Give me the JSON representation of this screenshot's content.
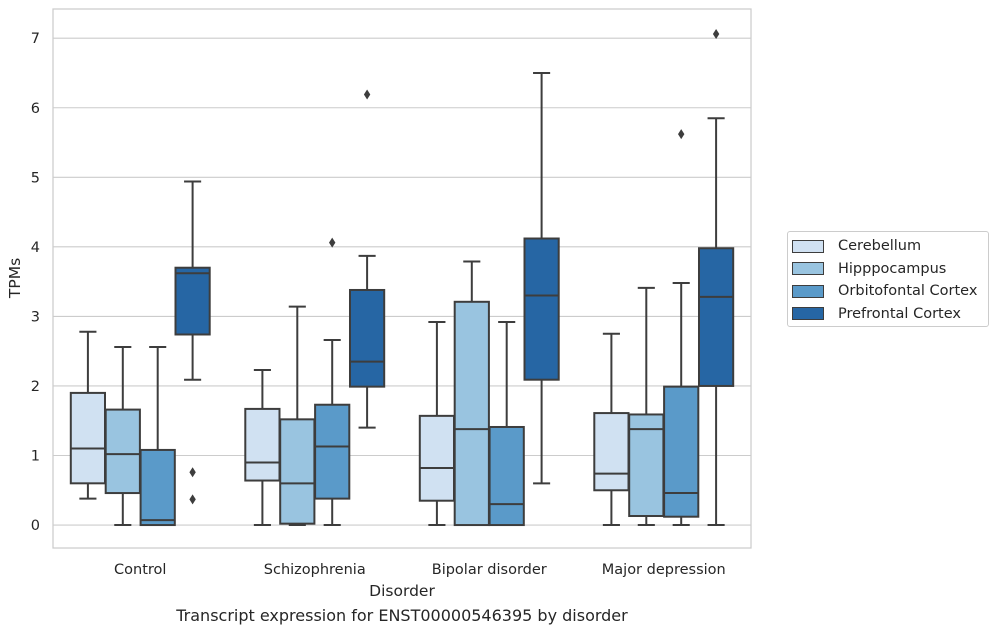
{
  "chart_data": {
    "type": "boxplot",
    "xlabel": "Disorder",
    "ylabel": "TPMs",
    "ylim": [
      -0.33,
      7.42
    ],
    "yticks": [
      0,
      1,
      2,
      3,
      4,
      5,
      6,
      7
    ],
    "grid": "horizontal",
    "legend_position": "right",
    "categories": [
      "Control",
      "Schizophrenia",
      "Bipolar disorder",
      "Major depression"
    ],
    "series": [
      {
        "name": "Cerebellum",
        "color": "#d0e1f2",
        "boxes": [
          {
            "whislo": 0.38,
            "q1": 0.6,
            "med": 1.1,
            "q3": 1.9,
            "whishi": 2.78,
            "fliers": []
          },
          {
            "whislo": 0.0,
            "q1": 0.64,
            "med": 0.9,
            "q3": 1.67,
            "whishi": 2.23,
            "fliers": []
          },
          {
            "whislo": 0.0,
            "q1": 0.35,
            "med": 0.82,
            "q3": 1.57,
            "whishi": 2.92,
            "fliers": []
          },
          {
            "whislo": 0.0,
            "q1": 0.5,
            "med": 0.74,
            "q3": 1.61,
            "whishi": 2.75,
            "fliers": []
          }
        ]
      },
      {
        "name": "Hipppocampus",
        "color": "#99c4e0",
        "boxes": [
          {
            "whislo": 0.0,
            "q1": 0.46,
            "med": 1.02,
            "q3": 1.66,
            "whishi": 2.56,
            "fliers": []
          },
          {
            "whislo": 0.0,
            "q1": 0.02,
            "med": 0.6,
            "q3": 1.52,
            "whishi": 3.14,
            "fliers": []
          },
          {
            "whislo": 0.0,
            "q1": 0.0,
            "med": 1.38,
            "q3": 3.21,
            "whishi": 3.79,
            "fliers": []
          },
          {
            "whislo": 0.0,
            "q1": 0.13,
            "med": 1.38,
            "q3": 1.59,
            "whishi": 3.41,
            "fliers": []
          }
        ]
      },
      {
        "name": "Orbitofontal Cortex",
        "color": "#5a9ac9",
        "boxes": [
          {
            "whislo": 0.0,
            "q1": 0.0,
            "med": 0.07,
            "q3": 1.08,
            "whishi": 2.56,
            "fliers": []
          },
          {
            "whislo": 0.0,
            "q1": 0.38,
            "med": 1.13,
            "q3": 1.73,
            "whishi": 2.66,
            "fliers": [
              4.06
            ]
          },
          {
            "whislo": 0.0,
            "q1": 0.0,
            "med": 0.3,
            "q3": 1.41,
            "whishi": 2.92,
            "fliers": []
          },
          {
            "whislo": 0.0,
            "q1": 0.12,
            "med": 0.46,
            "q3": 1.99,
            "whishi": 3.48,
            "fliers": [
              5.62
            ]
          }
        ]
      },
      {
        "name": "Prefrontal Cortex",
        "color": "#2666a4",
        "boxes": [
          {
            "whislo": 2.09,
            "q1": 2.74,
            "med": 3.62,
            "q3": 3.7,
            "whishi": 4.94,
            "fliers": [
              0.76,
              0.37
            ]
          },
          {
            "whislo": 1.4,
            "q1": 1.99,
            "med": 2.35,
            "q3": 3.38,
            "whishi": 3.87,
            "fliers": [
              6.19
            ]
          },
          {
            "whislo": 0.6,
            "q1": 2.09,
            "med": 3.3,
            "q3": 4.12,
            "whishi": 6.5,
            "fliers": []
          },
          {
            "whislo": 0.0,
            "q1": 2.0,
            "med": 3.28,
            "q3": 3.98,
            "whishi": 5.85,
            "fliers": [
              7.06
            ]
          }
        ]
      }
    ]
  },
  "caption": "Transcript expression for ENST00000546395 by disorder"
}
